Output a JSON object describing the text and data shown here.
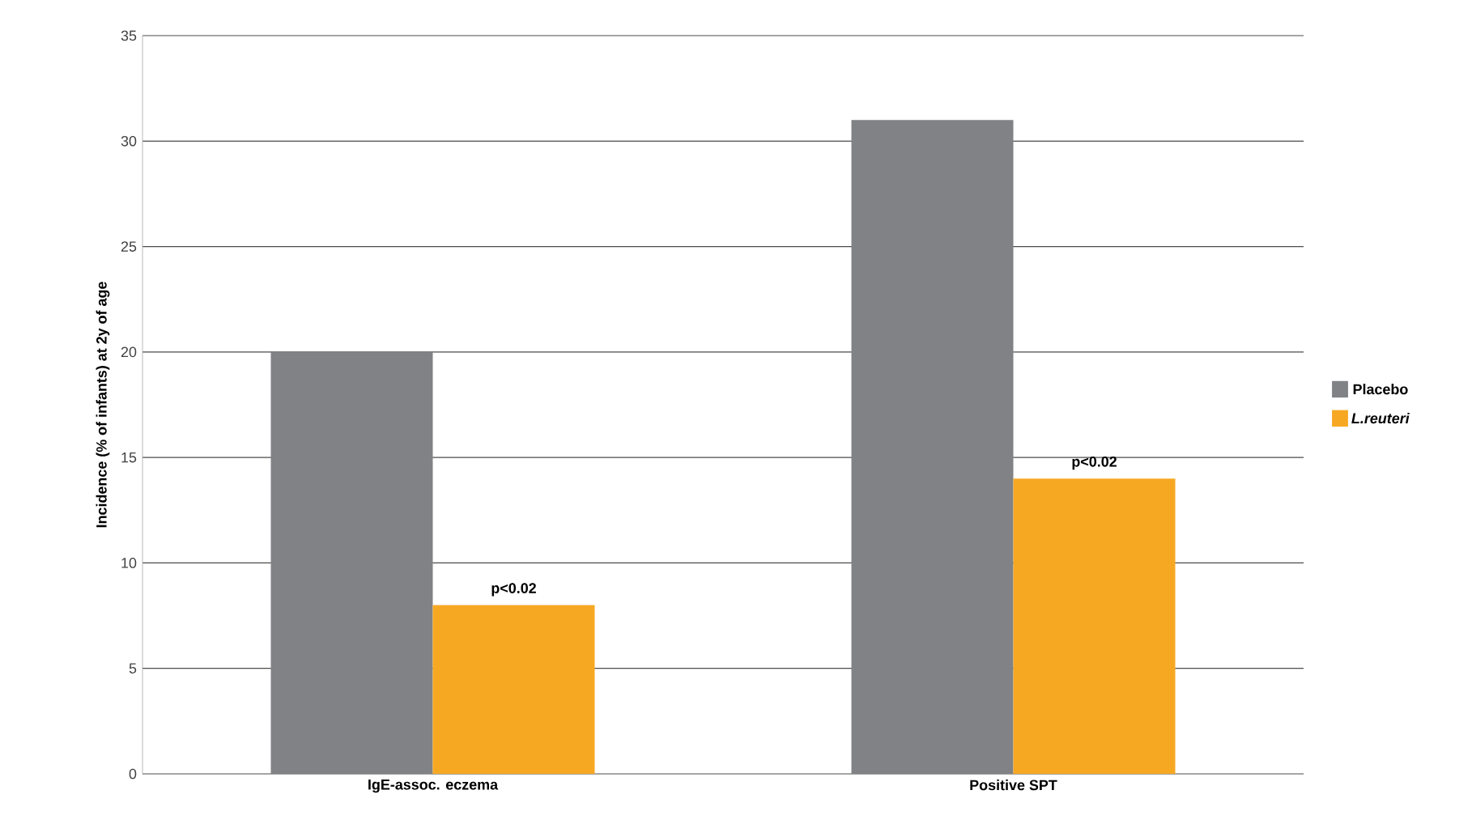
{
  "chart_data": {
    "type": "bar",
    "ylabel": "Incidence (% of infants) at 2y of age",
    "categories": [
      "IgE-assoc. eczema",
      "Positive SPT"
    ],
    "series": [
      {
        "name": "Placebo",
        "color": "#808285",
        "values": [
          20,
          31
        ]
      },
      {
        "name": "*L.reuteri*",
        "color": "#f7a823",
        "values": [
          8,
          14
        ]
      }
    ],
    "ylim": [
      0,
      35
    ],
    "yticks": [
      0,
      5,
      10,
      15,
      20,
      25,
      30,
      35
    ],
    "grid": "y",
    "legend": "right",
    "annotations": [
      "p<0.02",
      "p<0.02"
    ]
  }
}
